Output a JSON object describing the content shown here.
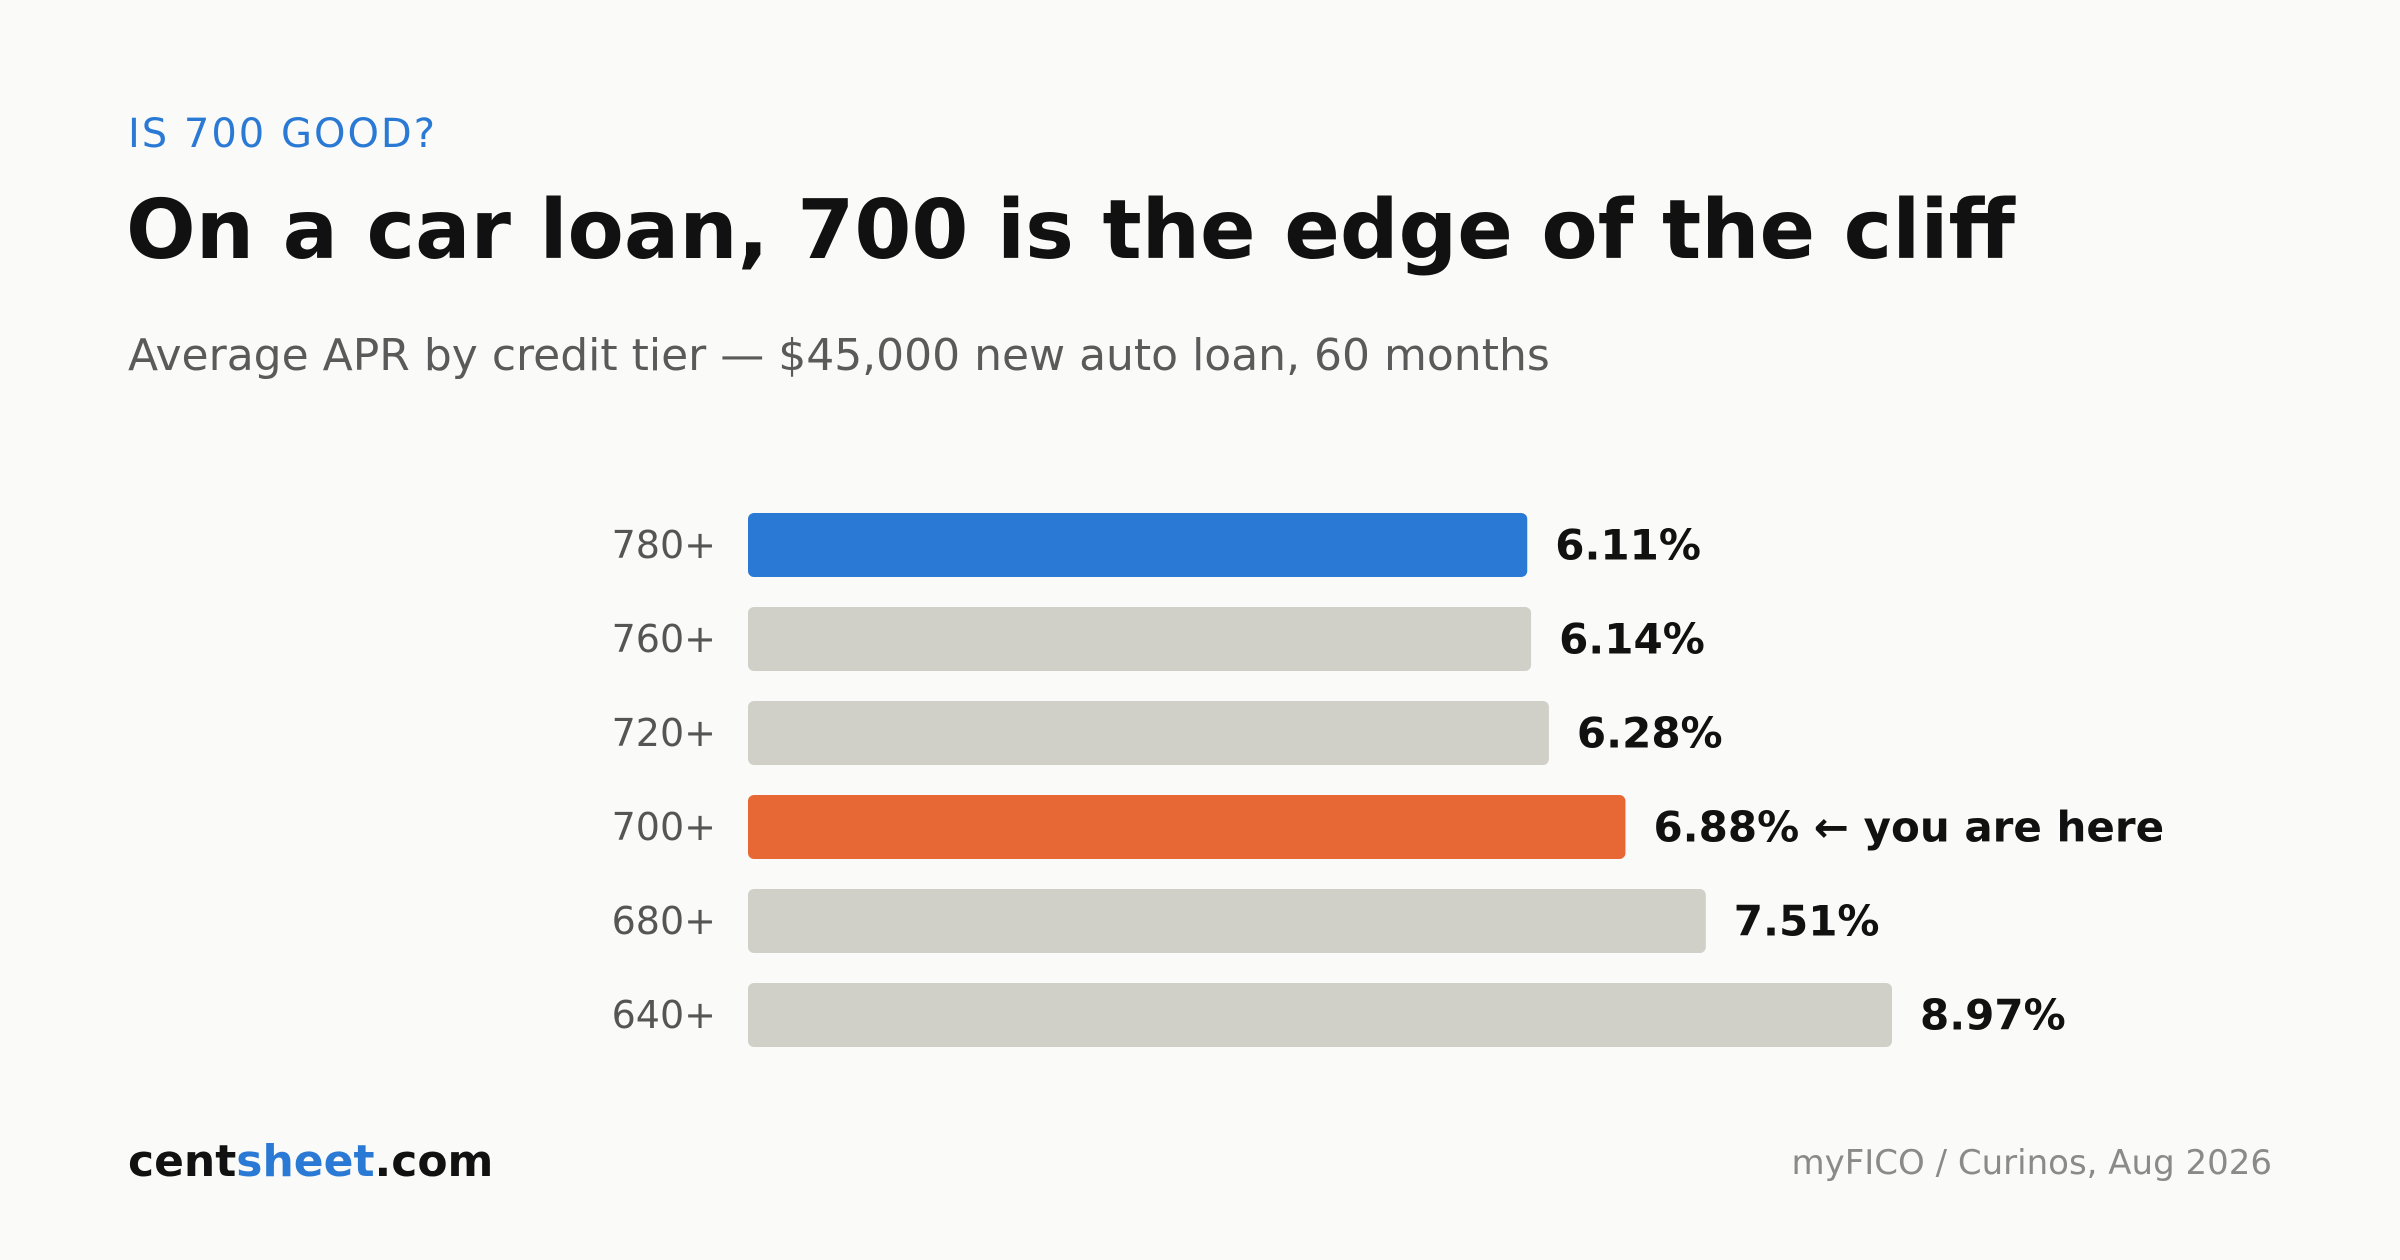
{
  "eyebrow": "IS 700 GOOD?",
  "title": "On a car loan, 700 is the edge of the cliff",
  "subtitle": "Average APR by credit tier — $45,000 new auto loan, 60 months",
  "brand": {
    "part1": "cent",
    "part2": "sheet",
    "part3": ".com"
  },
  "source": "myFICO / Curinos, Aug 2026",
  "colors": {
    "highlight_blue": "#2a7ad5",
    "highlight_orange": "#e86835",
    "neutral_bar": "#d0d0c8",
    "text_dark": "#111111",
    "label_gray": "#555555"
  },
  "chart_data": {
    "type": "bar",
    "orientation": "horizontal",
    "categories": [
      "780+",
      "760+",
      "720+",
      "700+",
      "680+",
      "640+"
    ],
    "values": [
      6.11,
      6.14,
      6.28,
      6.88,
      7.51,
      8.97
    ],
    "value_labels": [
      "6.11%",
      "6.14%",
      "6.28%",
      "6.88% ← you are here",
      "7.51%",
      "8.97%"
    ],
    "bar_colors": [
      "#2a7ad5",
      "#d0d0c8",
      "#d0d0c8",
      "#e86835",
      "#d0d0c8",
      "#d0d0c8"
    ],
    "xlim": [
      0,
      8.97
    ],
    "grid": false,
    "title": "",
    "xlabel": "",
    "ylabel": ""
  }
}
